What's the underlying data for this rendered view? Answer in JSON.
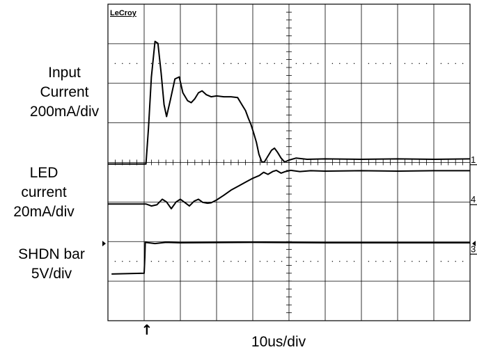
{
  "chart_data": {
    "type": "line",
    "brand": "LeCroy",
    "timebase": "10us/div",
    "grid": true,
    "divisions": {
      "x": 10,
      "y": 8
    },
    "channels": [
      {
        "name": "Input Current",
        "label_lines": [
          "Input",
          "Current",
          "200mA/div"
        ],
        "marker": "1",
        "ground_div": 4.04,
        "samples": [
          [
            0,
            0
          ],
          [
            1.05,
            0
          ],
          [
            1.12,
            0.9
          ],
          [
            1.2,
            2.2
          ],
          [
            1.3,
            3.1
          ],
          [
            1.38,
            3.05
          ],
          [
            1.47,
            2.3
          ],
          [
            1.55,
            1.5
          ],
          [
            1.62,
            1.2
          ],
          [
            1.72,
            1.6
          ],
          [
            1.85,
            2.15
          ],
          [
            1.97,
            2.2
          ],
          [
            2.07,
            1.8
          ],
          [
            2.2,
            1.6
          ],
          [
            2.3,
            1.55
          ],
          [
            2.4,
            1.65
          ],
          [
            2.5,
            1.8
          ],
          [
            2.6,
            1.85
          ],
          [
            2.72,
            1.75
          ],
          [
            2.85,
            1.7
          ],
          [
            3.0,
            1.72
          ],
          [
            3.2,
            1.7
          ],
          [
            3.4,
            1.7
          ],
          [
            3.58,
            1.68
          ],
          [
            3.7,
            1.5
          ],
          [
            3.8,
            1.35
          ],
          [
            3.88,
            1.15
          ],
          [
            3.95,
            1.0
          ],
          [
            4.02,
            0.8
          ],
          [
            4.1,
            0.55
          ],
          [
            4.17,
            0.25
          ],
          [
            4.25,
            0.05
          ],
          [
            4.32,
            0.05
          ],
          [
            4.42,
            0.2
          ],
          [
            4.52,
            0.35
          ],
          [
            4.6,
            0.4
          ],
          [
            4.68,
            0.3
          ],
          [
            4.78,
            0.15
          ],
          [
            4.88,
            0.05
          ],
          [
            5.0,
            0.1
          ],
          [
            5.2,
            0.15
          ],
          [
            5.5,
            0.12
          ],
          [
            6.0,
            0.13
          ],
          [
            7.0,
            0.12
          ],
          [
            8.0,
            0.13
          ],
          [
            9.0,
            0.12
          ],
          [
            10,
            0.13
          ]
        ]
      },
      {
        "name": "LED current",
        "label_lines": [
          "LED",
          "current",
          "20mA/div"
        ],
        "marker": "4",
        "ground_div": 5.05,
        "samples": [
          [
            0,
            0
          ],
          [
            1.05,
            0
          ],
          [
            1.2,
            -0.05
          ],
          [
            1.35,
            -0.02
          ],
          [
            1.5,
            0.12
          ],
          [
            1.62,
            0.05
          ],
          [
            1.75,
            -0.12
          ],
          [
            1.88,
            0.05
          ],
          [
            2.0,
            0.12
          ],
          [
            2.12,
            0.04
          ],
          [
            2.25,
            -0.05
          ],
          [
            2.38,
            0.07
          ],
          [
            2.5,
            0.12
          ],
          [
            2.62,
            0.04
          ],
          [
            2.75,
            0.02
          ],
          [
            2.85,
            0.03
          ],
          [
            3.0,
            0.1
          ],
          [
            3.2,
            0.22
          ],
          [
            3.4,
            0.35
          ],
          [
            3.6,
            0.45
          ],
          [
            3.8,
            0.55
          ],
          [
            4.0,
            0.65
          ],
          [
            4.18,
            0.72
          ],
          [
            4.3,
            0.8
          ],
          [
            4.42,
            0.75
          ],
          [
            4.55,
            0.82
          ],
          [
            4.65,
            0.85
          ],
          [
            4.78,
            0.78
          ],
          [
            4.9,
            0.82
          ],
          [
            5.05,
            0.85
          ],
          [
            5.3,
            0.82
          ],
          [
            5.6,
            0.84
          ],
          [
            6.0,
            0.83
          ],
          [
            7.0,
            0.84
          ],
          [
            8.0,
            0.83
          ],
          [
            9.0,
            0.84
          ],
          [
            10,
            0.84
          ]
        ]
      },
      {
        "name": "SHDN bar",
        "label_lines": [
          "SHDN bar",
          "5V/div"
        ],
        "marker": "3",
        "ground_div": 6.3,
        "samples": [
          [
            0.1,
            -0.52
          ],
          [
            1.0,
            -0.5
          ],
          [
            1.02,
            -0.1
          ],
          [
            1.03,
            0.28
          ],
          [
            1.3,
            0.25
          ],
          [
            1.6,
            0.28
          ],
          [
            2.0,
            0.27
          ],
          [
            4.0,
            0.28
          ],
          [
            6.0,
            0.27
          ],
          [
            8.0,
            0.27
          ],
          [
            10,
            0.27
          ]
        ]
      }
    ],
    "trigger_marker": "↑"
  }
}
